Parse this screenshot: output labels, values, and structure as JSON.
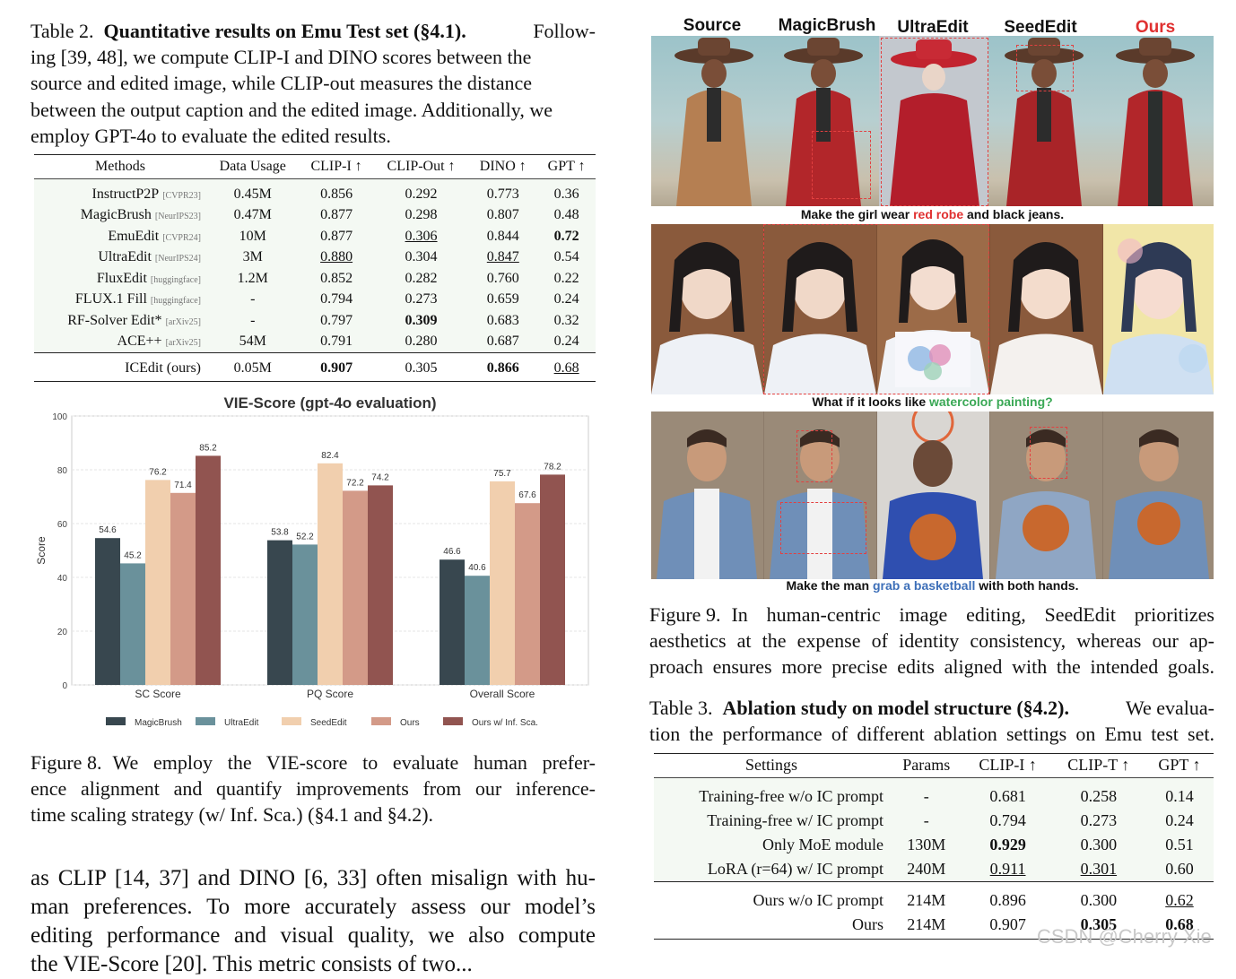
{
  "table2": {
    "caption_label": "Table 2.",
    "caption_title": "Quantitative results on Emu Test set (§4.1).",
    "caption_line1_rest": "Follow-",
    "caption_lines": [
      "ing [39, 48], we compute CLIP-I and DINO scores between the",
      "source and edited image, while CLIP-out measures the distance",
      "between the output caption and the edited image. Additionally, we",
      "employ GPT-4o to evaluate the edited results."
    ],
    "headers": [
      "Methods",
      "Data Usage",
      "CLIP-I ↑",
      "CLIP-Out ↑",
      "DINO ↑",
      "GPT ↑"
    ],
    "rows": [
      {
        "method": "InstructP2P",
        "venue": "[CVPR23]",
        "data": "0.45M",
        "clipi": "0.856",
        "clipout": "0.292",
        "dino": "0.773",
        "gpt": "0.36"
      },
      {
        "method": "MagicBrush",
        "venue": "[NeurIPS23]",
        "data": "0.47M",
        "clipi": "0.877",
        "clipout": "0.298",
        "dino": "0.807",
        "gpt": "0.48"
      },
      {
        "method": "EmuEdit",
        "venue": "[CVPR24]",
        "data": "10M",
        "clipi": "0.877",
        "clipout": "0.306",
        "dino": "0.844",
        "gpt": "0.72"
      },
      {
        "method": "UltraEdit",
        "venue": "[NeurIPS24]",
        "data": "3M",
        "clipi": "0.880",
        "clipout": "0.304",
        "dino": "0.847",
        "gpt": "0.54"
      },
      {
        "method": "FluxEdit",
        "venue": "[huggingface]",
        "data": "1.2M",
        "clipi": "0.852",
        "clipout": "0.282",
        "dino": "0.760",
        "gpt": "0.22"
      },
      {
        "method": "FLUX.1 Fill",
        "venue": "[huggingface]",
        "data": "-",
        "clipi": "0.794",
        "clipout": "0.273",
        "dino": "0.659",
        "gpt": "0.24"
      },
      {
        "method": "RF-Solver Edit*",
        "venue": "[arXiv25]",
        "data": "-",
        "clipi": "0.797",
        "clipout": "0.309",
        "dino": "0.683",
        "gpt": "0.32"
      },
      {
        "method": "ACE++",
        "venue": "[arXiv25]",
        "data": "54M",
        "clipi": "0.791",
        "clipout": "0.280",
        "dino": "0.687",
        "gpt": "0.24"
      }
    ],
    "ours": {
      "method": "ICEdit (ours)",
      "data": "0.05M",
      "clipi": "0.907",
      "clipout": "0.305",
      "dino": "0.866",
      "gpt": "0.68"
    }
  },
  "chart_data": {
    "type": "bar",
    "title": "VIE-Score (gpt-4o evaluation)",
    "xlabel": "",
    "ylabel": "Score",
    "ylim": [
      0,
      100
    ],
    "yticks": [
      0,
      20,
      40,
      60,
      80,
      100
    ],
    "categories": [
      "SC Score",
      "PQ Score",
      "Overall Score"
    ],
    "series": [
      {
        "name": "MagicBrush",
        "color": "#38474f",
        "values": [
          54.6,
          53.8,
          46.6
        ]
      },
      {
        "name": "UltraEdit",
        "color": "#6a919b",
        "values": [
          45.2,
          52.2,
          40.6
        ]
      },
      {
        "name": "SeedEdit",
        "color": "#f1cfae",
        "values": [
          76.2,
          82.4,
          75.7
        ]
      },
      {
        "name": "Ours",
        "color": "#d39a88",
        "values": [
          71.4,
          72.2,
          67.6
        ]
      },
      {
        "name": "Ours w/ Inf. Sca.",
        "color": "#915450",
        "values": [
          85.2,
          74.2,
          78.2
        ]
      }
    ],
    "legend_position": "bottom"
  },
  "figure8": {
    "label": "Figure 8.",
    "lines": [
      "We employ the VIE-score to evaluate human prefer-",
      "ence alignment and quantify improvements from our inference-",
      "time scaling strategy (w/ Inf. Sca.) (§4.1 and §4.2)."
    ]
  },
  "body_left": [
    "as CLIP [14, 37] and DINO [6, 33] often misalign with hu-",
    "man preferences. To more accurately assess our model’s",
    "editing performance and visual quality, we also compute",
    "the VIE-Score [20]. This metric consists of two..."
  ],
  "figure9_grid": {
    "columns": [
      "Source",
      "MagicBrush",
      "UltraEdit",
      "SeedEdit",
      "Ours"
    ],
    "captions": [
      {
        "pre": "Make the girl wear ",
        "hl": "red robe",
        "post": " and black jeans.",
        "hl_color": "#e03030"
      },
      {
        "pre": "What if it looks like ",
        "hl": "watercolor painting?",
        "post": "",
        "hl_color": "#3aa855"
      },
      {
        "pre": "Make the man ",
        "hl": "grab a basketball",
        "post": " with both hands.",
        "hl_color": "#3d6fb8"
      }
    ]
  },
  "figure9": {
    "label": "Figure 9.",
    "lines": [
      "In human-centric image editing, SeedEdit prioritizes",
      "aesthetics at the expense of identity consistency, whereas our ap-",
      "proach ensures more precise edits aligned with the intended goals."
    ]
  },
  "table3": {
    "caption_label": "Table 3.",
    "caption_title": "Ablation study on model structure (§4.2).",
    "caption_line1_rest": "We evalua-",
    "caption_line2": "tion the performance of different ablation settings on Emu test set.",
    "headers": [
      "Settings",
      "Params",
      "CLIP-I ↑",
      "CLIP-T ↑",
      "GPT ↑"
    ],
    "rows": [
      {
        "setting": "Training-free w/o IC prompt",
        "params": "-",
        "clipi": "0.681",
        "clipt": "0.258",
        "gpt": "0.14"
      },
      {
        "setting": "Training-free w/ IC prompt",
        "params": "-",
        "clipi": "0.794",
        "clipt": "0.273",
        "gpt": "0.24"
      },
      {
        "setting": "Only MoE module",
        "params": "130M",
        "clipi": "0.929",
        "clipt": "0.300",
        "gpt": "0.51"
      },
      {
        "setting": "LoRA (r=64) w/ IC prompt",
        "params": "240M",
        "clipi": "0.911",
        "clipt": "0.301",
        "gpt": "0.60"
      }
    ],
    "rows2": [
      {
        "setting": "Ours w/o IC prompt",
        "params": "214M",
        "clipi": "0.896",
        "clipt": "0.300",
        "gpt": "0.62"
      },
      {
        "setting": "Ours",
        "params": "214M",
        "clipi": "0.907",
        "clipt": "0.305",
        "gpt": "0.68"
      }
    ]
  },
  "watermark": "CSDN @Cherry Xie"
}
